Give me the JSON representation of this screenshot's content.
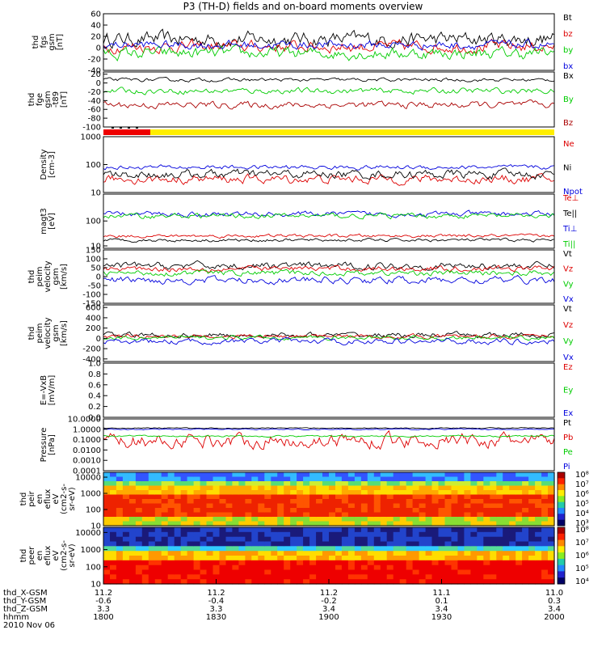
{
  "title": "P3 (TH-D) fields and on-board moments overview",
  "chart_data": {
    "type": "line",
    "x_ticks": [
      "1800",
      "1830",
      "1900",
      "1930",
      "2000"
    ],
    "orbit_rows": [
      {
        "label": "thd_X-GSM",
        "values": [
          "11.2",
          "11.2",
          "11.2",
          "11.1",
          "11.0"
        ]
      },
      {
        "label": "thd_Y-GSM",
        "values": [
          "-0.6",
          "-0.4",
          "-0.2",
          "0.1",
          "0.3"
        ]
      },
      {
        "label": "thd_Z-GSM",
        "values": [
          "3.3",
          "3.3",
          "3.4",
          "3.4",
          "3.4"
        ]
      },
      {
        "label": "hhmm",
        "values": [
          "1800",
          "1830",
          "1900",
          "1930",
          "2000"
        ]
      }
    ],
    "date": "2010 Nov 06",
    "panels": [
      {
        "ylabel": [
          "thd",
          "fgs",
          "gsm",
          "[nT]"
        ],
        "yticks": [
          "60",
          "40",
          "20",
          "0",
          "-20",
          "-40"
        ],
        "ylim": [
          -40,
          60
        ],
        "log": false,
        "series": [
          {
            "name": "Bt",
            "color": "#000000",
            "base": 15,
            "amp": 10
          },
          {
            "name": "bz",
            "color": "#dd0000",
            "base": 2,
            "amp": 8
          },
          {
            "name": "by",
            "color": "#00cc00",
            "base": -10,
            "amp": 8
          },
          {
            "name": "bx",
            "color": "#0000dd",
            "base": 5,
            "amp": 6
          }
        ]
      },
      {
        "ylabel": [
          "thd",
          "fge",
          "gsm",
          "-t89",
          "[nT]"
        ],
        "yticks": [
          "20",
          "0",
          "-20",
          "-40",
          "-60",
          "-80",
          "-100"
        ],
        "ylim": [
          -100,
          25
        ],
        "log": false,
        "series": [
          {
            "name": "Bx",
            "color": "#000000",
            "base": 7,
            "amp": 3
          },
          {
            "name": "By",
            "color": "#00cc00",
            "base": -18,
            "amp": 5
          },
          {
            "name": "Bz",
            "color": "#aa0000",
            "base": -50,
            "amp": 6
          }
        ]
      },
      {
        "ylabel": [
          "Density",
          "[cm-3]"
        ],
        "yticks": [
          "1000",
          "100",
          "10"
        ],
        "ylim": [
          10,
          1000
        ],
        "log": true,
        "series": [
          {
            "name": "Ne",
            "color": "#dd0000",
            "base": 30,
            "amp": 0.12
          },
          {
            "name": "Ni",
            "color": "#000000",
            "base": 45,
            "amp": 0.12
          },
          {
            "name": "Npot",
            "color": "#0000dd",
            "base": 80,
            "amp": 0.06
          }
        ]
      },
      {
        "ylabel": [
          "magt3",
          "[eV]"
        ],
        "yticks": [
          "100",
          "10"
        ],
        "ylim": [
          8,
          1200
        ],
        "log": true,
        "series": [
          {
            "name": "Te⊥",
            "color": "#dd0000",
            "base": 25,
            "amp": 0.05
          },
          {
            "name": "Te||",
            "color": "#000000",
            "base": 17,
            "amp": 0.05
          },
          {
            "name": "Ti⊥",
            "color": "#0000dd",
            "base": 190,
            "amp": 0.08
          },
          {
            "name": "Ti||",
            "color": "#00cc00",
            "base": 160,
            "amp": 0.08
          }
        ]
      },
      {
        "ylabel": [
          "thd",
          "peim",
          "velocity",
          "gsm",
          "[km/s]"
        ],
        "yticks": [
          "150",
          "100",
          "50",
          "0",
          "-50",
          "-100",
          "-150"
        ],
        "ylim": [
          -150,
          150
        ],
        "log": false,
        "series": [
          {
            "name": "Vt",
            "color": "#000000",
            "base": 60,
            "amp": 15
          },
          {
            "name": "Vz",
            "color": "#dd0000",
            "base": 45,
            "amp": 12
          },
          {
            "name": "Vy",
            "color": "#00cc00",
            "base": 20,
            "amp": 12
          },
          {
            "name": "Vx",
            "color": "#0000dd",
            "base": -20,
            "amp": 15
          }
        ]
      },
      {
        "ylabel": [
          "thd",
          "peim",
          "velocity",
          "gsm",
          "[km/s]"
        ],
        "yticks": [
          "600",
          "400",
          "200",
          "0",
          "-200",
          "-400"
        ],
        "ylim": [
          -450,
          650
        ],
        "log": false,
        "series": [
          {
            "name": "Vt",
            "color": "#000000",
            "base": 60,
            "amp": 40
          },
          {
            "name": "Vz",
            "color": "#dd0000",
            "base": 40,
            "amp": 30
          },
          {
            "name": "Vy",
            "color": "#00cc00",
            "base": 10,
            "amp": 30
          },
          {
            "name": "Vx",
            "color": "#0000dd",
            "base": -60,
            "amp": 40
          }
        ]
      },
      {
        "ylabel": [
          "E=-VxB",
          "[mV/m]"
        ],
        "yticks": [
          "1.0",
          "0.8",
          "0.6",
          "0.4",
          "0.2",
          "0.0"
        ],
        "ylim": [
          0,
          1
        ],
        "log": false,
        "series": [
          {
            "name": "Ez",
            "color": "#dd0000"
          },
          {
            "name": "Ey",
            "color": "#00cc00"
          },
          {
            "name": "Ex",
            "color": "#0000dd"
          }
        ]
      },
      {
        "ylabel": [
          "Pressure",
          "[nPa]"
        ],
        "yticks": [
          "10.0000",
          "1.0000",
          "0.1000",
          "0.0100",
          "0.0010",
          "0.0001"
        ],
        "ylim": [
          0.0001,
          10
        ],
        "log": true,
        "series": [
          {
            "name": "Pt",
            "color": "#000000",
            "base": 1.3,
            "amp": 0.04
          },
          {
            "name": "Pb",
            "color": "#dd0000",
            "base": 0.08,
            "amp": 0.5
          },
          {
            "name": "Pe",
            "color": "#00cc00",
            "base": 0.22,
            "amp": 0.06
          },
          {
            "name": "Pi",
            "color": "#0000dd",
            "base": 1.0,
            "amp": 0.04
          }
        ]
      },
      {
        "ylabel": [
          "thd",
          "peir",
          "en",
          "eflux",
          "eV",
          "(cm2-s-",
          "sr-eV)"
        ],
        "yticks": [
          "10000",
          "1000",
          "100",
          "10"
        ],
        "ylim": [
          10,
          20000
        ],
        "log": true,
        "spectrogram": true,
        "variant": "ion",
        "colorbar": [
          "10^8",
          "10^7",
          "10^6",
          "10^5",
          "10^4",
          "10^3"
        ]
      },
      {
        "ylabel": [
          "thd",
          "peer",
          "en",
          "eflux",
          "eV",
          "(cm2-s-",
          "sr-eV)"
        ],
        "yticks": [
          "10000",
          "1000",
          "100",
          "10"
        ],
        "ylim": [
          10,
          20000
        ],
        "log": true,
        "spectrogram": true,
        "variant": "electron",
        "colorbar": [
          "10^8",
          "10^7",
          "10^6",
          "10^5",
          "10^4"
        ]
      }
    ]
  }
}
